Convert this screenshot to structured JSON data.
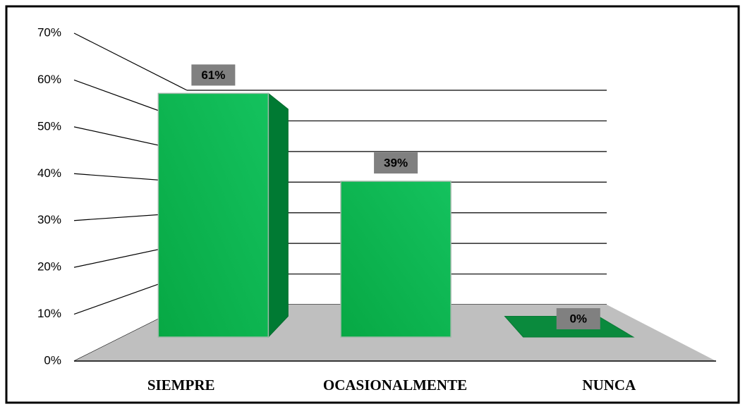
{
  "chart_data": {
    "type": "bar3d",
    "categories": [
      "SIEMPRE",
      "OCASIONALMENTE",
      "NUNCA"
    ],
    "values": [
      61,
      39,
      0
    ],
    "value_labels": [
      "61%",
      "39%",
      "0%"
    ],
    "color": "#0bb44e",
    "ylim": [
      0,
      70
    ],
    "yticks": [
      {
        "value": 0,
        "label": "0%"
      },
      {
        "value": 10,
        "label": "10%"
      },
      {
        "value": 20,
        "label": "20%"
      },
      {
        "value": 30,
        "label": "30%"
      },
      {
        "value": 40,
        "label": "40%"
      },
      {
        "value": 50,
        "label": "50%"
      },
      {
        "value": 60,
        "label": "60%"
      },
      {
        "value": 70,
        "label": "70%"
      }
    ],
    "grid": true
  }
}
